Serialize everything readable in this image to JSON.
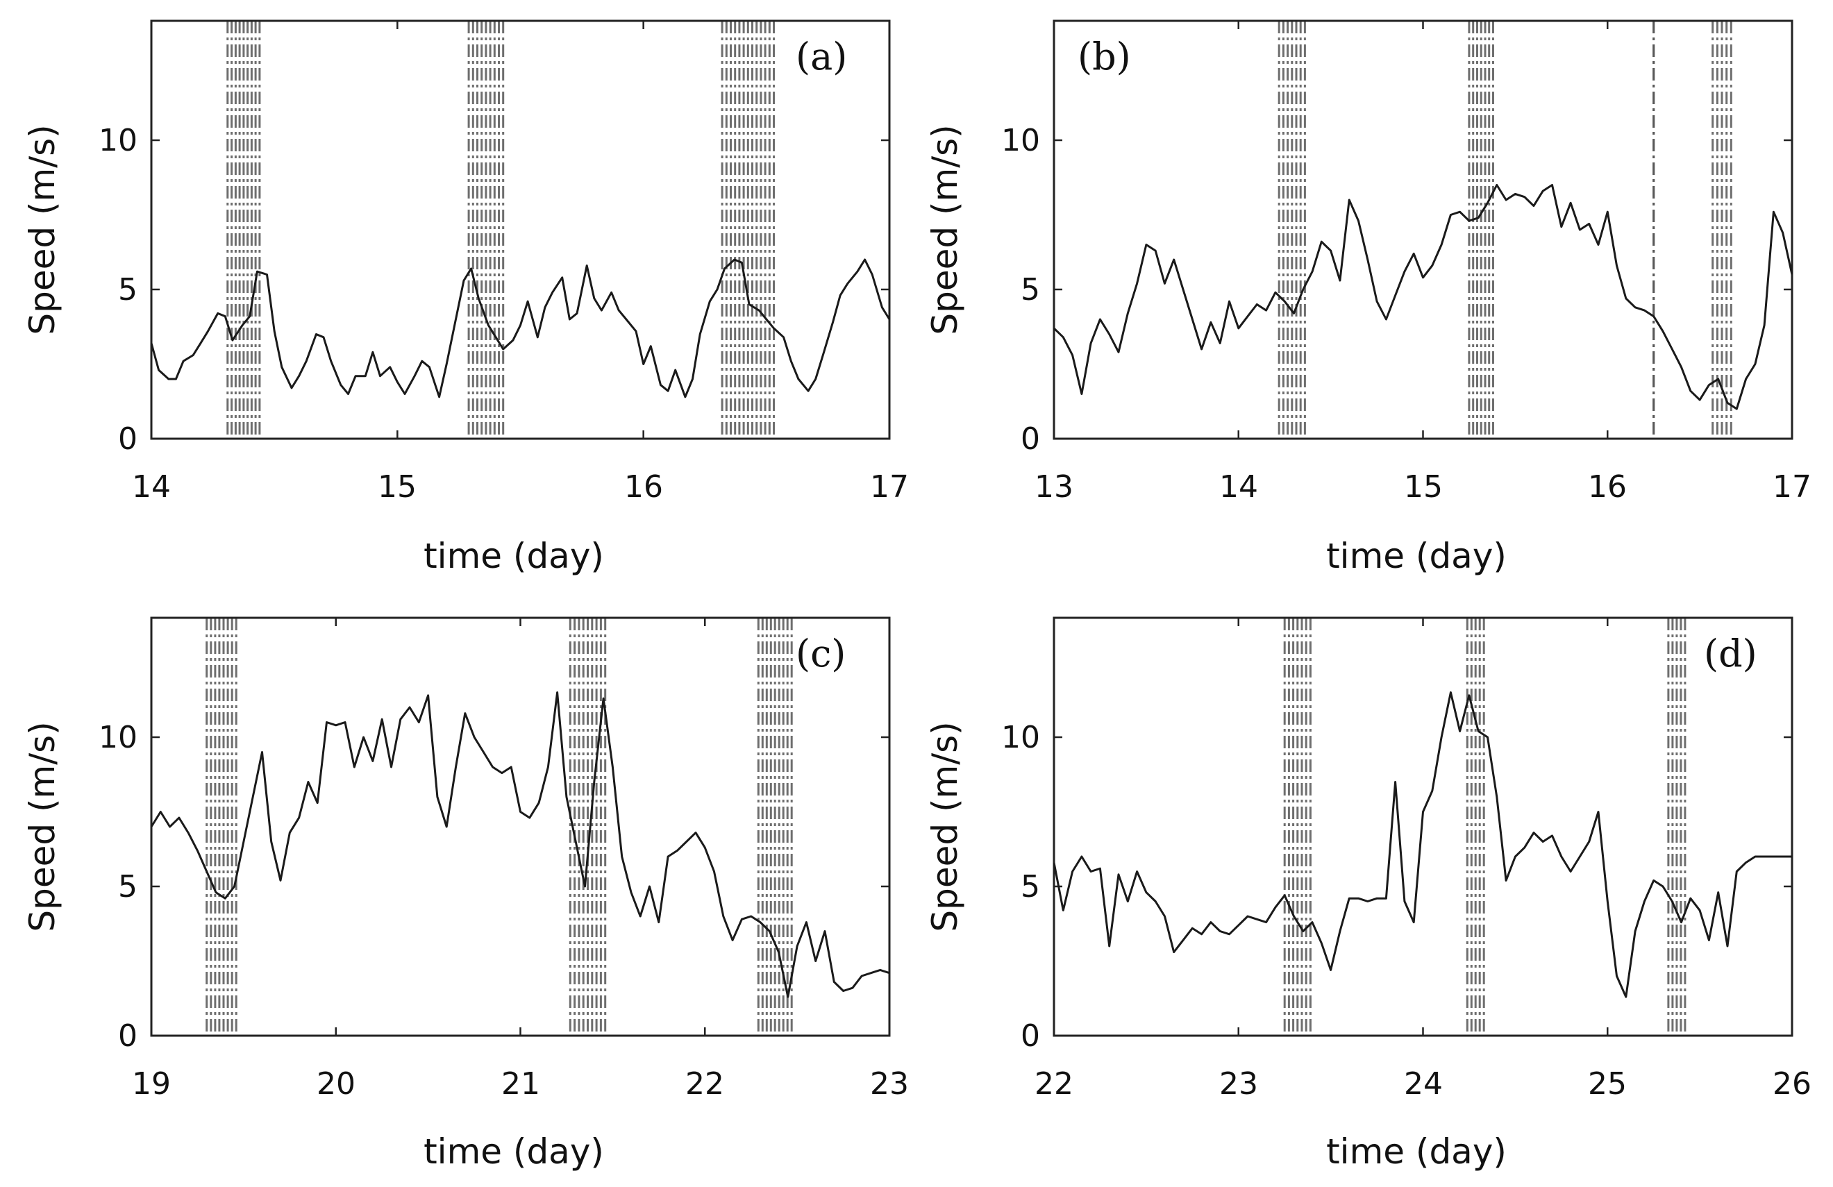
{
  "chart_data": [
    {
      "type": "line",
      "label": "(a)",
      "xlabel": "time (day)",
      "ylabel": "Speed (m/s)",
      "xlim": [
        14,
        17
      ],
      "ylim": [
        0,
        14
      ],
      "xticks": [
        "14",
        "15",
        "16",
        "17"
      ],
      "yticks": [
        "0",
        "5",
        "10"
      ],
      "event_bands": [
        [
          14.31,
          14.44
        ],
        [
          15.29,
          15.43
        ],
        [
          16.32,
          16.53
        ]
      ],
      "series": [
        {
          "name": "speed",
          "x": [
            14.0,
            14.03,
            14.07,
            14.1,
            14.13,
            14.17,
            14.2,
            14.23,
            14.27,
            14.3,
            14.33,
            14.37,
            14.4,
            14.43,
            14.47,
            14.5,
            14.53,
            14.57,
            14.6,
            14.63,
            14.67,
            14.7,
            14.73,
            14.77,
            14.8,
            14.83,
            14.87,
            14.9,
            14.93,
            14.97,
            15.0,
            15.03,
            15.07,
            15.1,
            15.13,
            15.17,
            15.2,
            15.23,
            15.27,
            15.3,
            15.33,
            15.37,
            15.4,
            15.43,
            15.47,
            15.5,
            15.53,
            15.57,
            15.6,
            15.63,
            15.67,
            15.7,
            15.73,
            15.77,
            15.8,
            15.83,
            15.87,
            15.9,
            15.93,
            15.97,
            16.0,
            16.03,
            16.07,
            16.1,
            16.13,
            16.17,
            16.2,
            16.23,
            16.27,
            16.3,
            16.33,
            16.37,
            16.4,
            16.43,
            16.47,
            16.5,
            16.53,
            16.57,
            16.6,
            16.63,
            16.67,
            16.7,
            16.73,
            16.77,
            16.8,
            16.83,
            16.87,
            16.9,
            16.93,
            16.97,
            17.0
          ],
          "y": [
            3.2,
            2.3,
            2.0,
            2.0,
            2.6,
            2.8,
            3.2,
            3.6,
            4.2,
            4.1,
            3.3,
            3.8,
            4.1,
            5.6,
            5.5,
            3.6,
            2.4,
            1.7,
            2.1,
            2.6,
            3.5,
            3.4,
            2.6,
            1.8,
            1.5,
            2.1,
            2.1,
            2.9,
            2.1,
            2.4,
            1.9,
            1.5,
            2.1,
            2.6,
            2.4,
            1.4,
            2.5,
            3.7,
            5.3,
            5.7,
            4.7,
            3.8,
            3.4,
            3.0,
            3.3,
            3.8,
            4.6,
            3.4,
            4.4,
            4.9,
            5.4,
            4.0,
            4.2,
            5.8,
            4.7,
            4.3,
            4.9,
            4.3,
            4.0,
            3.6,
            2.5,
            3.1,
            1.8,
            1.6,
            2.3,
            1.4,
            2.0,
            3.5,
            4.6,
            5.0,
            5.7,
            6.0,
            5.9,
            4.5,
            4.3,
            4.0,
            3.7,
            3.4,
            2.6,
            2.0,
            1.6,
            2.0,
            2.8,
            3.9,
            4.8,
            5.2,
            5.6,
            6.0,
            5.5,
            4.4,
            4.0
          ]
        }
      ]
    },
    {
      "type": "line",
      "label": "(b)",
      "xlabel": "time (day)",
      "ylabel": "Speed (m/s)",
      "xlim": [
        13,
        17
      ],
      "ylim": [
        0,
        14
      ],
      "xticks": [
        "13",
        "14",
        "15",
        "16",
        "17"
      ],
      "yticks": [
        "0",
        "5",
        "10"
      ],
      "event_bands": [
        [
          14.22,
          14.36
        ],
        [
          15.25,
          15.38
        ],
        [
          16.25,
          16.25
        ],
        [
          16.57,
          16.67
        ]
      ],
      "series": [
        {
          "name": "speed",
          "x": [
            13.0,
            13.05,
            13.1,
            13.15,
            13.2,
            13.25,
            13.3,
            13.35,
            13.4,
            13.45,
            13.5,
            13.55,
            13.6,
            13.65,
            13.7,
            13.75,
            13.8,
            13.85,
            13.9,
            13.95,
            14.0,
            14.05,
            14.1,
            14.15,
            14.2,
            14.25,
            14.3,
            14.35,
            14.4,
            14.45,
            14.5,
            14.55,
            14.6,
            14.65,
            14.7,
            14.75,
            14.8,
            14.85,
            14.9,
            14.95,
            15.0,
            15.05,
            15.1,
            15.15,
            15.2,
            15.25,
            15.3,
            15.35,
            15.4,
            15.45,
            15.5,
            15.55,
            15.6,
            15.65,
            15.7,
            15.75,
            15.8,
            15.85,
            15.9,
            15.95,
            16.0,
            16.05,
            16.1,
            16.15,
            16.2,
            16.25,
            16.3,
            16.35,
            16.4,
            16.45,
            16.5,
            16.55,
            16.6,
            16.65,
            16.7,
            16.75,
            16.8,
            16.85,
            16.9,
            16.95,
            17.0
          ],
          "y": [
            3.7,
            3.4,
            2.8,
            1.5,
            3.2,
            4.0,
            3.5,
            2.9,
            4.2,
            5.2,
            6.5,
            6.3,
            5.2,
            6.0,
            5.0,
            4.0,
            3.0,
            3.9,
            3.2,
            4.6,
            3.7,
            4.1,
            4.5,
            4.3,
            4.9,
            4.6,
            4.2,
            5.0,
            5.6,
            6.6,
            6.3,
            5.3,
            8.0,
            7.3,
            6.0,
            4.6,
            4.0,
            4.8,
            5.6,
            6.2,
            5.4,
            5.8,
            6.5,
            7.5,
            7.6,
            7.3,
            7.4,
            7.9,
            8.5,
            8.0,
            8.2,
            8.1,
            7.8,
            8.3,
            8.5,
            7.1,
            7.9,
            7.0,
            7.2,
            6.5,
            7.6,
            5.8,
            4.7,
            4.4,
            4.3,
            4.1,
            3.6,
            3.0,
            2.4,
            1.6,
            1.3,
            1.8,
            2.0,
            1.2,
            1.0,
            2.0,
            2.5,
            3.8,
            7.6,
            6.9,
            5.5
          ]
        }
      ]
    },
    {
      "type": "line",
      "label": "(c)",
      "xlabel": "time (day)",
      "ylabel": "Speed (m/s)",
      "xlim": [
        19,
        23
      ],
      "ylim": [
        0,
        14
      ],
      "xticks": [
        "19",
        "20",
        "21",
        "22",
        "23"
      ],
      "yticks": [
        "0",
        "5",
        "10"
      ],
      "event_bands": [
        [
          19.3,
          19.46
        ],
        [
          21.27,
          21.46
        ],
        [
          22.29,
          22.47
        ]
      ],
      "series": [
        {
          "name": "speed",
          "x": [
            19.0,
            19.05,
            19.1,
            19.15,
            19.2,
            19.25,
            19.3,
            19.35,
            19.4,
            19.45,
            19.5,
            19.55,
            19.6,
            19.65,
            19.7,
            19.75,
            19.8,
            19.85,
            19.9,
            19.95,
            20.0,
            20.05,
            20.1,
            20.15,
            20.2,
            20.25,
            20.3,
            20.35,
            20.4,
            20.45,
            20.5,
            20.55,
            20.6,
            20.65,
            20.7,
            20.75,
            20.8,
            20.85,
            20.9,
            20.95,
            21.0,
            21.05,
            21.1,
            21.15,
            21.2,
            21.25,
            21.3,
            21.35,
            21.4,
            21.45,
            21.5,
            21.55,
            21.6,
            21.65,
            21.7,
            21.75,
            21.8,
            21.85,
            21.9,
            21.95,
            22.0,
            22.05,
            22.1,
            22.15,
            22.2,
            22.25,
            22.3,
            22.35,
            22.4,
            22.45,
            22.5,
            22.55,
            22.6,
            22.65,
            22.7,
            22.75,
            22.8,
            22.85,
            22.9,
            22.95,
            23.0
          ],
          "y": [
            7.0,
            7.5,
            7.0,
            7.3,
            6.8,
            6.2,
            5.5,
            4.8,
            4.6,
            5.0,
            6.5,
            8.0,
            9.5,
            6.5,
            5.2,
            6.8,
            7.3,
            8.5,
            7.8,
            10.5,
            10.4,
            10.5,
            9.0,
            10.0,
            9.2,
            10.6,
            9.0,
            10.6,
            11.0,
            10.5,
            11.4,
            8.0,
            7.0,
            9.0,
            10.8,
            10.0,
            9.5,
            9.0,
            8.8,
            9.0,
            7.5,
            7.3,
            7.8,
            9.0,
            11.5,
            8.0,
            6.5,
            5.0,
            8.5,
            11.3,
            9.0,
            6.0,
            4.8,
            4.0,
            5.0,
            3.8,
            6.0,
            6.2,
            6.5,
            6.8,
            6.3,
            5.5,
            4.0,
            3.2,
            3.9,
            4.0,
            3.8,
            3.5,
            2.8,
            1.3,
            3.0,
            3.8,
            2.5,
            3.5,
            1.8,
            1.5,
            1.6,
            2.0,
            2.1,
            2.2,
            2.1
          ]
        }
      ]
    },
    {
      "type": "line",
      "label": "(d)",
      "xlabel": "time (day)",
      "ylabel": "Speed (m/s)",
      "xlim": [
        22,
        26
      ],
      "ylim": [
        0,
        14
      ],
      "xticks": [
        "22",
        "23",
        "24",
        "25",
        "26"
      ],
      "yticks": [
        "0",
        "5",
        "10"
      ],
      "event_bands": [
        [
          23.25,
          23.39
        ],
        [
          24.24,
          24.33
        ],
        [
          25.33,
          25.42
        ]
      ],
      "series": [
        {
          "name": "speed",
          "x": [
            22.0,
            22.05,
            22.1,
            22.15,
            22.2,
            22.25,
            22.3,
            22.35,
            22.4,
            22.45,
            22.5,
            22.55,
            22.6,
            22.65,
            22.7,
            22.75,
            22.8,
            22.85,
            22.9,
            22.95,
            23.0,
            23.05,
            23.1,
            23.15,
            23.2,
            23.25,
            23.3,
            23.35,
            23.4,
            23.45,
            23.5,
            23.55,
            23.6,
            23.65,
            23.7,
            23.75,
            23.8,
            23.85,
            23.9,
            23.95,
            24.0,
            24.05,
            24.1,
            24.15,
            24.2,
            24.25,
            24.3,
            24.35,
            24.4,
            24.45,
            24.5,
            24.55,
            24.6,
            24.65,
            24.7,
            24.75,
            24.8,
            24.85,
            24.9,
            24.95,
            25.0,
            25.05,
            25.1,
            25.15,
            25.2,
            25.25,
            25.3,
            25.35,
            25.4,
            25.45,
            25.5,
            25.55,
            25.6,
            25.65,
            25.7,
            25.75,
            25.8,
            25.85,
            25.9,
            25.95,
            26.0
          ],
          "y": [
            5.8,
            4.2,
            5.5,
            6.0,
            5.5,
            5.6,
            3.0,
            5.4,
            4.5,
            5.5,
            4.8,
            4.5,
            4.0,
            2.8,
            3.2,
            3.6,
            3.4,
            3.8,
            3.5,
            3.4,
            3.7,
            4.0,
            3.9,
            3.8,
            4.3,
            4.7,
            4.0,
            3.5,
            3.8,
            3.1,
            2.2,
            3.5,
            4.6,
            4.6,
            4.5,
            4.6,
            4.6,
            8.5,
            4.5,
            3.8,
            7.5,
            8.2,
            10.0,
            11.5,
            10.2,
            11.4,
            10.2,
            10.0,
            8.0,
            5.2,
            6.0,
            6.3,
            6.8,
            6.5,
            6.7,
            6.0,
            5.5,
            6.0,
            6.5,
            7.5,
            4.5,
            2.0,
            1.3,
            3.5,
            4.5,
            5.2,
            5.0,
            4.5,
            3.8,
            4.6,
            4.2,
            3.2,
            4.8,
            3.0,
            5.5,
            5.8,
            6.0,
            6.0,
            6.0,
            6.0,
            6.0
          ]
        }
      ]
    }
  ]
}
